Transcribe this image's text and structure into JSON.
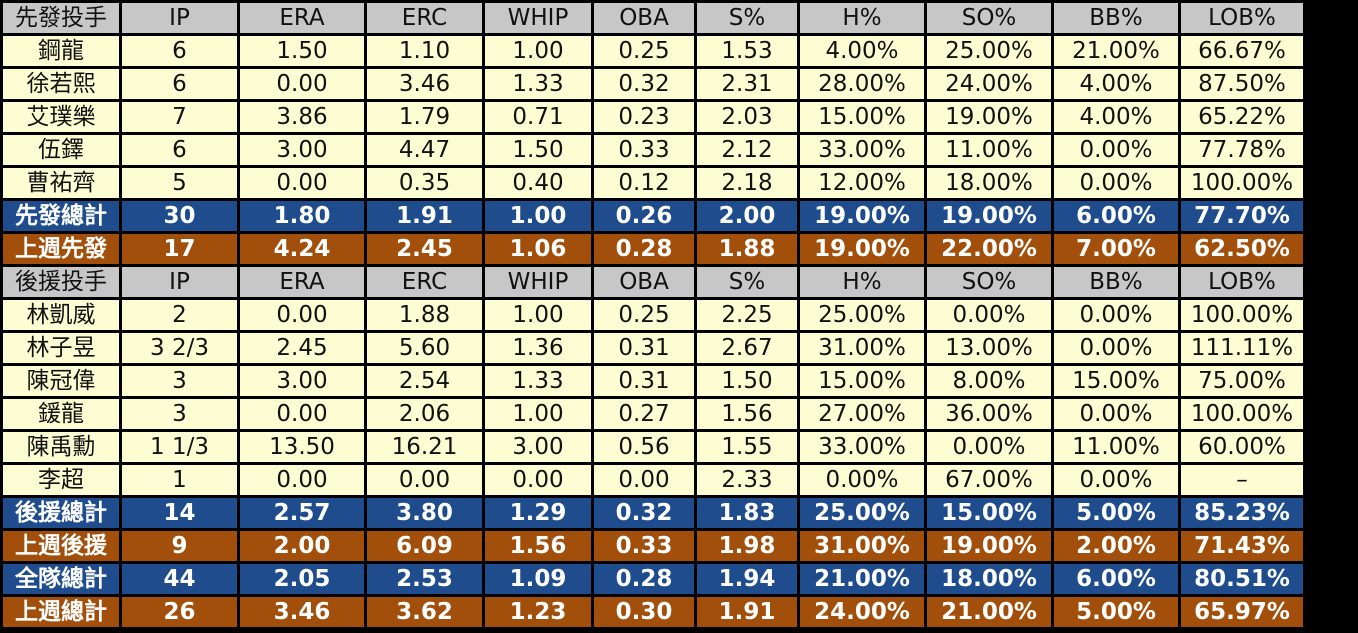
{
  "colors": {
    "header_bg": "#c7c7c7",
    "row_bg": "#fdfdd3",
    "total_blue": "#1f4c8c",
    "total_orange": "#a14f0a",
    "grid_lines": "#000000"
  },
  "starters": {
    "header": [
      "先發投手",
      "IP",
      "ERA",
      "ERC",
      "WHIP",
      "OBA",
      "S%",
      "H%",
      "SO%",
      "BB%",
      "LOB%"
    ],
    "rows": [
      [
        "鋼龍",
        "6",
        "1.50",
        "1.10",
        "1.00",
        "0.25",
        "1.53",
        "4.00%",
        "25.00%",
        "21.00%",
        "66.67%"
      ],
      [
        "徐若熙",
        "6",
        "0.00",
        "3.46",
        "1.33",
        "0.32",
        "2.31",
        "28.00%",
        "24.00%",
        "4.00%",
        "87.50%"
      ],
      [
        "艾璞樂",
        "7",
        "3.86",
        "1.79",
        "0.71",
        "0.23",
        "2.03",
        "15.00%",
        "19.00%",
        "4.00%",
        "65.22%"
      ],
      [
        "伍鐸",
        "6",
        "3.00",
        "4.47",
        "1.50",
        "0.33",
        "2.12",
        "33.00%",
        "11.00%",
        "0.00%",
        "77.78%"
      ],
      [
        "曹祐齊",
        "5",
        "0.00",
        "0.35",
        "0.40",
        "0.12",
        "2.18",
        "12.00%",
        "18.00%",
        "0.00%",
        "100.00%"
      ]
    ],
    "total": [
      "先發總計",
      "30",
      "1.80",
      "1.91",
      "1.00",
      "0.26",
      "2.00",
      "19.00%",
      "19.00%",
      "6.00%",
      "77.70%"
    ],
    "last_week": [
      "上週先發",
      "17",
      "4.24",
      "2.45",
      "1.06",
      "0.28",
      "1.88",
      "19.00%",
      "22.00%",
      "7.00%",
      "62.50%"
    ]
  },
  "relievers": {
    "header": [
      "後援投手",
      "IP",
      "ERA",
      "ERC",
      "WHIP",
      "OBA",
      "S%",
      "H%",
      "SO%",
      "BB%",
      "LOB%"
    ],
    "rows": [
      [
        "林凱威",
        "2",
        "0.00",
        "1.88",
        "1.00",
        "0.25",
        "2.25",
        "25.00%",
        "0.00%",
        "0.00%",
        "100.00%"
      ],
      [
        "林子昱",
        "3 2/3",
        "2.45",
        "5.60",
        "1.36",
        "0.31",
        "2.67",
        "31.00%",
        "13.00%",
        "0.00%",
        "111.11%"
      ],
      [
        "陳冠偉",
        "3",
        "3.00",
        "2.54",
        "1.33",
        "0.31",
        "1.50",
        "15.00%",
        "8.00%",
        "15.00%",
        "75.00%"
      ],
      [
        "鍰龍",
        "3",
        "0.00",
        "2.06",
        "1.00",
        "0.27",
        "1.56",
        "27.00%",
        "36.00%",
        "0.00%",
        "100.00%"
      ],
      [
        "陳禹勳",
        "1 1/3",
        "13.50",
        "16.21",
        "3.00",
        "0.56",
        "1.55",
        "33.00%",
        "0.00%",
        "11.00%",
        "60.00%"
      ],
      [
        "李超",
        "1",
        "0.00",
        "0.00",
        "0.00",
        "0.00",
        "2.33",
        "0.00%",
        "67.00%",
        "0.00%",
        "–"
      ]
    ],
    "total": [
      "後援總計",
      "14",
      "2.57",
      "3.80",
      "1.29",
      "0.32",
      "1.83",
      "25.00%",
      "15.00%",
      "5.00%",
      "85.23%"
    ],
    "last_week": [
      "上週後援",
      "9",
      "2.00",
      "6.09",
      "1.56",
      "0.33",
      "1.98",
      "31.00%",
      "19.00%",
      "2.00%",
      "71.43%"
    ]
  },
  "team": {
    "total": [
      "全隊總計",
      "44",
      "2.05",
      "2.53",
      "1.09",
      "0.28",
      "1.94",
      "21.00%",
      "18.00%",
      "6.00%",
      "80.51%"
    ],
    "last_week": [
      "上週總計",
      "26",
      "3.46",
      "3.62",
      "1.23",
      "0.30",
      "1.91",
      "24.00%",
      "21.00%",
      "5.00%",
      "65.97%"
    ]
  }
}
